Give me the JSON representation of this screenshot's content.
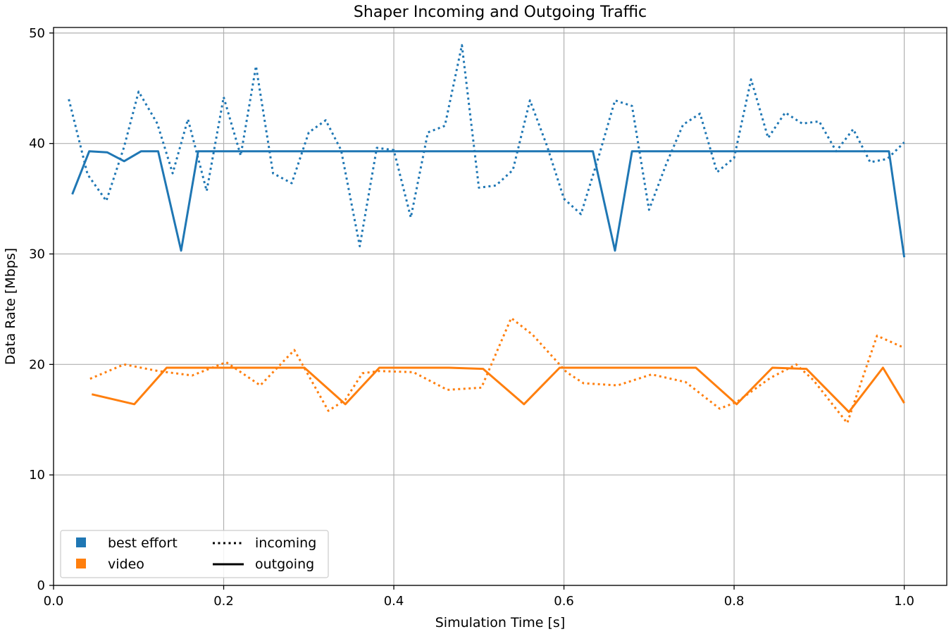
{
  "chart_data": {
    "type": "line",
    "title": "Shaper Incoming and Outgoing Traffic",
    "xlabel": "Simulation Time [s]",
    "ylabel": "Data Rate [Mbps]",
    "xlim": [
      0.0,
      1.05
    ],
    "ylim": [
      0,
      50.5
    ],
    "xticks": [
      0.0,
      0.2,
      0.4,
      0.6,
      0.8,
      1.0
    ],
    "xtick_labels": [
      "0.0",
      "0.2",
      "0.4",
      "0.6",
      "0.8",
      "1.0"
    ],
    "yticks": [
      0,
      10,
      20,
      30,
      40,
      50
    ],
    "ytick_labels": [
      "0",
      "10",
      "20",
      "30",
      "40",
      "50"
    ],
    "grid": true,
    "legend_position": "lower-left",
    "legend": {
      "categories": [
        {
          "label": "best effort",
          "color": "#1f77b4"
        },
        {
          "label": "video",
          "color": "#ff7f0e"
        }
      ],
      "styles": [
        {
          "label": "incoming",
          "linestyle": "dotted"
        },
        {
          "label": "outgoing",
          "linestyle": "solid"
        }
      ]
    },
    "series": [
      {
        "category": "best effort",
        "direction": "incoming",
        "color": "#1f77b4",
        "linestyle": "dotted",
        "x": [
          0.018,
          0.04,
          0.062,
          0.083,
          0.1,
          0.122,
          0.14,
          0.158,
          0.18,
          0.2,
          0.22,
          0.238,
          0.258,
          0.28,
          0.3,
          0.32,
          0.338,
          0.36,
          0.38,
          0.4,
          0.42,
          0.44,
          0.46,
          0.48,
          0.5,
          0.52,
          0.54,
          0.56,
          0.58,
          0.6,
          0.62,
          0.64,
          0.66,
          0.68,
          0.7,
          0.72,
          0.74,
          0.76,
          0.78,
          0.8,
          0.82,
          0.84,
          0.86,
          0.88,
          0.9,
          0.92,
          0.94,
          0.96,
          0.98,
          1.0
        ],
        "y": [
          44.0,
          37.2,
          34.8,
          39.7,
          44.7,
          41.8,
          37.3,
          42.2,
          35.7,
          44.2,
          38.9,
          47.0,
          37.3,
          36.4,
          41.0,
          42.1,
          39.4,
          30.7,
          39.6,
          39.4,
          33.3,
          41.0,
          41.6,
          48.9,
          36.0,
          36.2,
          37.6,
          43.9,
          39.8,
          35.0,
          33.6,
          38.6,
          43.9,
          43.4,
          34.0,
          38.1,
          41.7,
          42.7,
          37.4,
          38.7,
          45.8,
          40.5,
          42.8,
          41.8,
          42.0,
          39.3,
          41.3,
          38.3,
          38.6,
          40.1
        ]
      },
      {
        "category": "best effort",
        "direction": "outgoing",
        "color": "#1f77b4",
        "linestyle": "solid",
        "x": [
          0.022,
          0.042,
          0.063,
          0.083,
          0.103,
          0.123,
          0.15,
          0.17,
          0.634,
          0.66,
          0.68,
          0.982,
          1.0
        ],
        "y": [
          35.4,
          39.3,
          39.2,
          38.4,
          39.3,
          39.3,
          30.3,
          39.3,
          39.3,
          30.3,
          39.3,
          39.3,
          29.7
        ]
      },
      {
        "category": "video",
        "direction": "incoming",
        "color": "#ff7f0e",
        "linestyle": "dotted",
        "x": [
          0.043,
          0.083,
          0.123,
          0.163,
          0.203,
          0.243,
          0.283,
          0.323,
          0.343,
          0.363,
          0.383,
          0.423,
          0.463,
          0.503,
          0.538,
          0.563,
          0.603,
          0.623,
          0.663,
          0.703,
          0.743,
          0.783,
          0.803,
          0.843,
          0.873,
          0.893,
          0.933,
          0.968,
          1.0
        ],
        "y": [
          18.7,
          20.0,
          19.4,
          19.0,
          20.2,
          18.1,
          21.3,
          15.8,
          16.8,
          19.2,
          19.4,
          19.3,
          17.7,
          17.9,
          24.2,
          22.7,
          19.3,
          18.3,
          18.1,
          19.1,
          18.4,
          16.0,
          16.6,
          18.8,
          20.0,
          18.6,
          14.7,
          22.6,
          21.5
        ]
      },
      {
        "category": "video",
        "direction": "outgoing",
        "color": "#ff7f0e",
        "linestyle": "solid",
        "x": [
          0.045,
          0.095,
          0.133,
          0.295,
          0.343,
          0.383,
          0.465,
          0.505,
          0.553,
          0.595,
          0.755,
          0.803,
          0.845,
          0.885,
          0.935,
          0.975,
          1.0
        ],
        "y": [
          17.3,
          16.4,
          19.7,
          19.7,
          16.4,
          19.7,
          19.7,
          19.6,
          16.4,
          19.7,
          19.7,
          16.4,
          19.7,
          19.6,
          15.7,
          19.7,
          16.5
        ]
      }
    ]
  }
}
